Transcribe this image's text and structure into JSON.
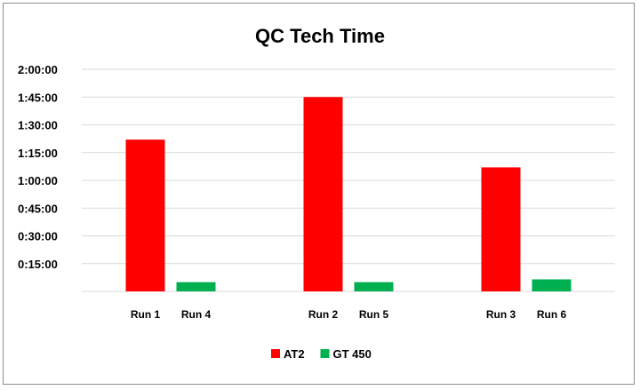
{
  "chart_data": {
    "type": "bar",
    "title": "QC Tech Time",
    "xlabel": "",
    "ylabel": "",
    "y_unit": "seconds",
    "ylim": [
      0,
      7200
    ],
    "yticks": [
      {
        "value": 900,
        "label": "0:15:00"
      },
      {
        "value": 1800,
        "label": "0:30:00"
      },
      {
        "value": 2700,
        "label": "0:45:00"
      },
      {
        "value": 3600,
        "label": "1:00:00"
      },
      {
        "value": 4500,
        "label": "1:15:00"
      },
      {
        "value": 5400,
        "label": "1:30:00"
      },
      {
        "value": 6300,
        "label": "1:45:00"
      },
      {
        "value": 7200,
        "label": "2:00:00"
      }
    ],
    "grid": true,
    "legend_position": "bottom",
    "groups": [
      {
        "bars": [
          {
            "label": "Run 1",
            "series": "AT2",
            "value": 4920
          },
          {
            "label": "Run 4",
            "series": "GT 450",
            "value": 300
          }
        ]
      },
      {
        "bars": [
          {
            "label": "Run 2",
            "series": "AT2",
            "value": 6300
          },
          {
            "label": "Run 5",
            "series": "GT 450",
            "value": 300
          }
        ]
      },
      {
        "bars": [
          {
            "label": "Run 3",
            "series": "AT2",
            "value": 4020
          },
          {
            "label": "Run 6",
            "series": "GT 450",
            "value": 390
          }
        ]
      }
    ],
    "series": [
      {
        "name": "AT2",
        "color": "#ff0000"
      },
      {
        "name": "GT 450",
        "color": "#00b050"
      }
    ]
  }
}
